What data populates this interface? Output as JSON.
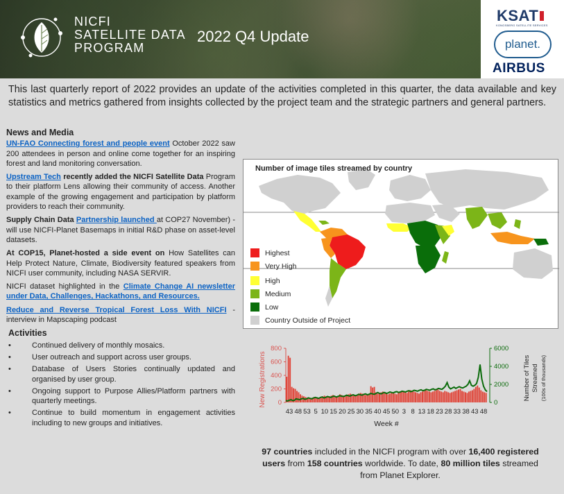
{
  "header": {
    "program_line1": "NICFI",
    "program_line2": "SATELLITE DATA",
    "program_line3": "PROGRAM",
    "update_title": "2022 Q4 Update",
    "partners": {
      "ksat": "KSAT",
      "ksat_sub": "KONGSBERG SATELLITE SERVICES",
      "planet": "planet.",
      "airbus": "AIRBUS"
    }
  },
  "intro": "This last quarterly report of 2022 provides an update of the activities completed in this quarter, the data available and key statistics and metrics gathered from insights collected by the project team and the strategic partners and general partners.",
  "news": {
    "title": "News and Media",
    "item1": {
      "link": "UN-FAO Connecting forest and people event",
      "text": " October 2022 saw 200 attendees in person and online come together for an inspiring forest and land monitoring conversation."
    },
    "item2": {
      "link": "Upstream Tech",
      "bold": " recently added the NICFI Satellite Data",
      "text": " Program to their platform Lens allowing their community of access.  Another example of the growing engagement and participation by platform providers to reach their community."
    },
    "item3": {
      "bold": "Supply Chain Data ",
      "link": "Partnership launched ",
      "text": "at COP27 November) - will use NICFI-Planet Basemaps in initial R&D phase on asset-level datasets."
    },
    "item4": {
      "bold": "At COP15, Planet-hosted  a side event on",
      "text": " How Satellites can Help Protect Nature, Climate, Biodiversity featured speakers from NICFI user community, including NASA SERVIR."
    },
    "item5": {
      "text": "NICFI dataset highlighted in the ",
      "link": "Climate Change AI newsletter under Data, Challenges, Hackathons, and Resources."
    },
    "item6": {
      "link": "Reduce and Reverse Tropical Forest Loss With NICFI",
      "text": " - interview in Mapscaping podcast"
    }
  },
  "activities": {
    "title": "Activities",
    "bullet": "•",
    "items": [
      "Continued delivery of monthly mosaics.",
      "User outreach and support across user groups.",
      "Database of Users Stories continually updated and organised by user group.",
      "Ongoing support to Purpose Allies/Platform partners with quarterly meetings.",
      "Continue to build momentum in engagement activities including to new groups and initiatives."
    ]
  },
  "map": {
    "title": "Number of image tiles streamed by country",
    "legend": [
      {
        "label": "Highest",
        "color": "#ee1c1c"
      },
      {
        "label": "Very High",
        "color": "#f7941d"
      },
      {
        "label": "High",
        "color": "#ffff33"
      },
      {
        "label": "Medium",
        "color": "#7cb518"
      },
      {
        "label": "Low",
        "color": "#0a6e0a"
      },
      {
        "label": "Country Outside of Project",
        "color": "#d0d0d0"
      }
    ]
  },
  "chart_data": {
    "type": "bar",
    "xlabel": "Week #",
    "ylabel": "New Registrations",
    "y2label_line1": "Number of Tiles",
    "y2label_line2": "Streamed",
    "y2label_line3": "(100s of thousands)",
    "ylim": [
      0,
      800
    ],
    "y2lim": [
      0,
      6000
    ],
    "yticks": [
      "0",
      "200",
      "400",
      "600",
      "800"
    ],
    "y2ticks": [
      "0",
      "2000",
      "4000",
      "6000"
    ],
    "xticks": [
      "43",
      "48",
      "53",
      "5",
      "10",
      "15",
      "20",
      "25",
      "30",
      "35",
      "40",
      "45",
      "50",
      "3",
      "8",
      "13",
      "18",
      "23",
      "28",
      "33",
      "38",
      "43",
      "48"
    ],
    "series": [
      {
        "type": "bar",
        "color": "#e0463a",
        "values": [
          380,
          690,
          660,
          230,
          210,
          200,
          170,
          150,
          120,
          100,
          90,
          80,
          70,
          70,
          60,
          70,
          80,
          70,
          60,
          70,
          80,
          90,
          100,
          90,
          80,
          90,
          100,
          110,
          90,
          80,
          100,
          120,
          110,
          100,
          90,
          110,
          120,
          130,
          120,
          110,
          100,
          110,
          130,
          140,
          130,
          120,
          110,
          120,
          130,
          240,
          220,
          230,
          150,
          130,
          140,
          150,
          160,
          140,
          130,
          120,
          130,
          140,
          150,
          130,
          120,
          140,
          150,
          160,
          170,
          150,
          140,
          160,
          180,
          170,
          160,
          150,
          140,
          130,
          150,
          160,
          170,
          180,
          170,
          160,
          150,
          160,
          170,
          180,
          190,
          170,
          160,
          150,
          170,
          160,
          150,
          140,
          150,
          160,
          170,
          180,
          190,
          200,
          170,
          160,
          150,
          140,
          160,
          170,
          180,
          200,
          230,
          250,
          220,
          180,
          160,
          150,
          140
        ]
      },
      {
        "type": "line",
        "color": "#0b6b0b",
        "values": [
          200,
          150,
          250,
          300,
          200,
          250,
          400,
          350,
          300,
          400,
          450,
          350,
          400,
          500,
          450,
          400,
          500,
          550,
          500,
          450,
          550,
          600,
          500,
          550,
          650,
          600,
          550,
          650,
          700,
          600,
          650,
          750,
          700,
          650,
          700,
          800,
          750,
          700,
          800,
          850,
          750,
          800,
          900,
          850,
          800,
          900,
          950,
          850,
          900,
          1000,
          950,
          900,
          1000,
          1100,
          1000,
          950,
          1050,
          1100,
          1000,
          1050,
          1150,
          1100,
          1050,
          1150,
          1200,
          1100,
          1150,
          1250,
          1200,
          1150,
          1250,
          1300,
          1200,
          1250,
          1350,
          1300,
          1250,
          1350,
          1400,
          1300,
          1350,
          1450,
          1400,
          1350,
          1450,
          1500,
          1400,
          1450,
          1550,
          1500,
          1450,
          1600,
          1800,
          2200,
          1700,
          1500,
          1600,
          1700,
          1550,
          1650,
          1750,
          1650,
          1600,
          1700,
          1800,
          2000,
          2400,
          1900,
          1800,
          1900,
          2100,
          2800,
          4200,
          2600,
          1800,
          1400,
          1200
        ]
      }
    ]
  },
  "stats": {
    "countries": "97 countries",
    "t1": " included in the NICFI program with over ",
    "users": "16,400 registered users",
    "t2": " from ",
    "countries2": "158 countries",
    "t3": " worldwide. To date, ",
    "tiles": "80 million tiles",
    "t4": " streamed from Planet Explorer."
  }
}
